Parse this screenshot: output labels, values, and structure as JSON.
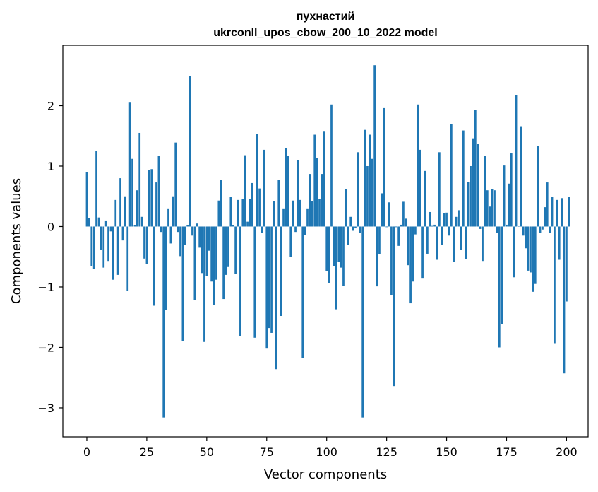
{
  "chart_data": {
    "type": "bar",
    "title": "пухнастий",
    "subtitle": "ukrconll_upos_cbow_200_10_2022 model",
    "xlabel": "Vector components",
    "ylabel": "Components values",
    "xlim": [
      -10,
      209
    ],
    "ylim": [
      -3.48,
      3.0
    ],
    "xticks": [
      0,
      25,
      50,
      75,
      100,
      125,
      150,
      175,
      200
    ],
    "yticks": [
      -3,
      -2,
      -1,
      0,
      1,
      2
    ],
    "ytick_labels": [
      "−3",
      "−2",
      "−1",
      "0",
      "1",
      "2"
    ],
    "bar_color": "#1f77b4",
    "values": [
      0.9,
      0.14,
      -0.65,
      -0.7,
      1.25,
      0.15,
      -0.38,
      -0.68,
      0.1,
      -0.57,
      -0.08,
      -0.88,
      0.44,
      -0.8,
      0.8,
      -0.23,
      0.5,
      -1.07,
      2.05,
      1.12,
      0.02,
      0.6,
      1.55,
      0.16,
      -0.53,
      -0.62,
      0.94,
      0.95,
      -1.31,
      0.73,
      1.17,
      -0.09,
      -3.16,
      -1.38,
      0.3,
      -0.28,
      0.5,
      1.39,
      -0.09,
      -0.49,
      -1.89,
      -0.3,
      0.02,
      2.49,
      -0.15,
      -1.22,
      0.05,
      -0.35,
      -0.77,
      -1.91,
      -0.82,
      -0.4,
      -0.91,
      -1.3,
      -0.88,
      0.43,
      0.77,
      -1.2,
      -0.8,
      -0.67,
      0.49,
      0.02,
      -0.78,
      0.44,
      -1.81,
      0.45,
      1.18,
      0.08,
      0.46,
      0.72,
      -1.84,
      1.53,
      0.63,
      -0.11,
      1.27,
      -2.02,
      -1.68,
      -1.76,
      0.42,
      -2.36,
      0.77,
      -1.48,
      0.3,
      1.3,
      1.17,
      -0.5,
      0.43,
      -0.09,
      1.1,
      0.44,
      -2.18,
      -0.14,
      0.3,
      0.87,
      0.42,
      1.52,
      1.13,
      0.46,
      0.87,
      1.57,
      -0.74,
      -0.93,
      2.02,
      -0.66,
      -1.37,
      -0.58,
      -0.68,
      -0.98,
      0.62,
      -0.3,
      0.16,
      -0.07,
      -0.03,
      1.23,
      -0.1,
      -3.16,
      1.6,
      1.0,
      1.52,
      1.12,
      2.67,
      -0.99,
      -0.46,
      0.55,
      1.96,
      -0.01,
      0.4,
      -1.14,
      -2.64,
      -0.01,
      -0.32,
      0.03,
      0.41,
      0.13,
      -0.64,
      -1.27,
      -0.91,
      -0.13,
      2.02,
      1.27,
      -0.85,
      0.92,
      -0.45,
      0.24,
      0.01,
      0.03,
      -0.55,
      1.23,
      -0.3,
      0.22,
      0.23,
      -0.15,
      1.7,
      -0.58,
      0.16,
      0.27,
      -0.39,
      1.59,
      -0.54,
      0.74,
      1.0,
      1.46,
      1.93,
      1.37,
      -0.04,
      -0.57,
      1.17,
      0.6,
      0.33,
      0.62,
      0.6,
      -0.11,
      -2.0,
      -1.62,
      1.01,
      0.03,
      0.71,
      1.21,
      -0.84,
      2.18,
      0.0,
      1.66,
      -0.15,
      -0.36,
      -0.73,
      -0.76,
      -1.08,
      -0.95,
      1.33,
      -0.1,
      -0.05,
      0.32,
      0.73,
      -0.11,
      0.49,
      -1.93,
      0.44,
      -0.55,
      0.47,
      -2.43,
      -1.24,
      0.49
    ]
  }
}
